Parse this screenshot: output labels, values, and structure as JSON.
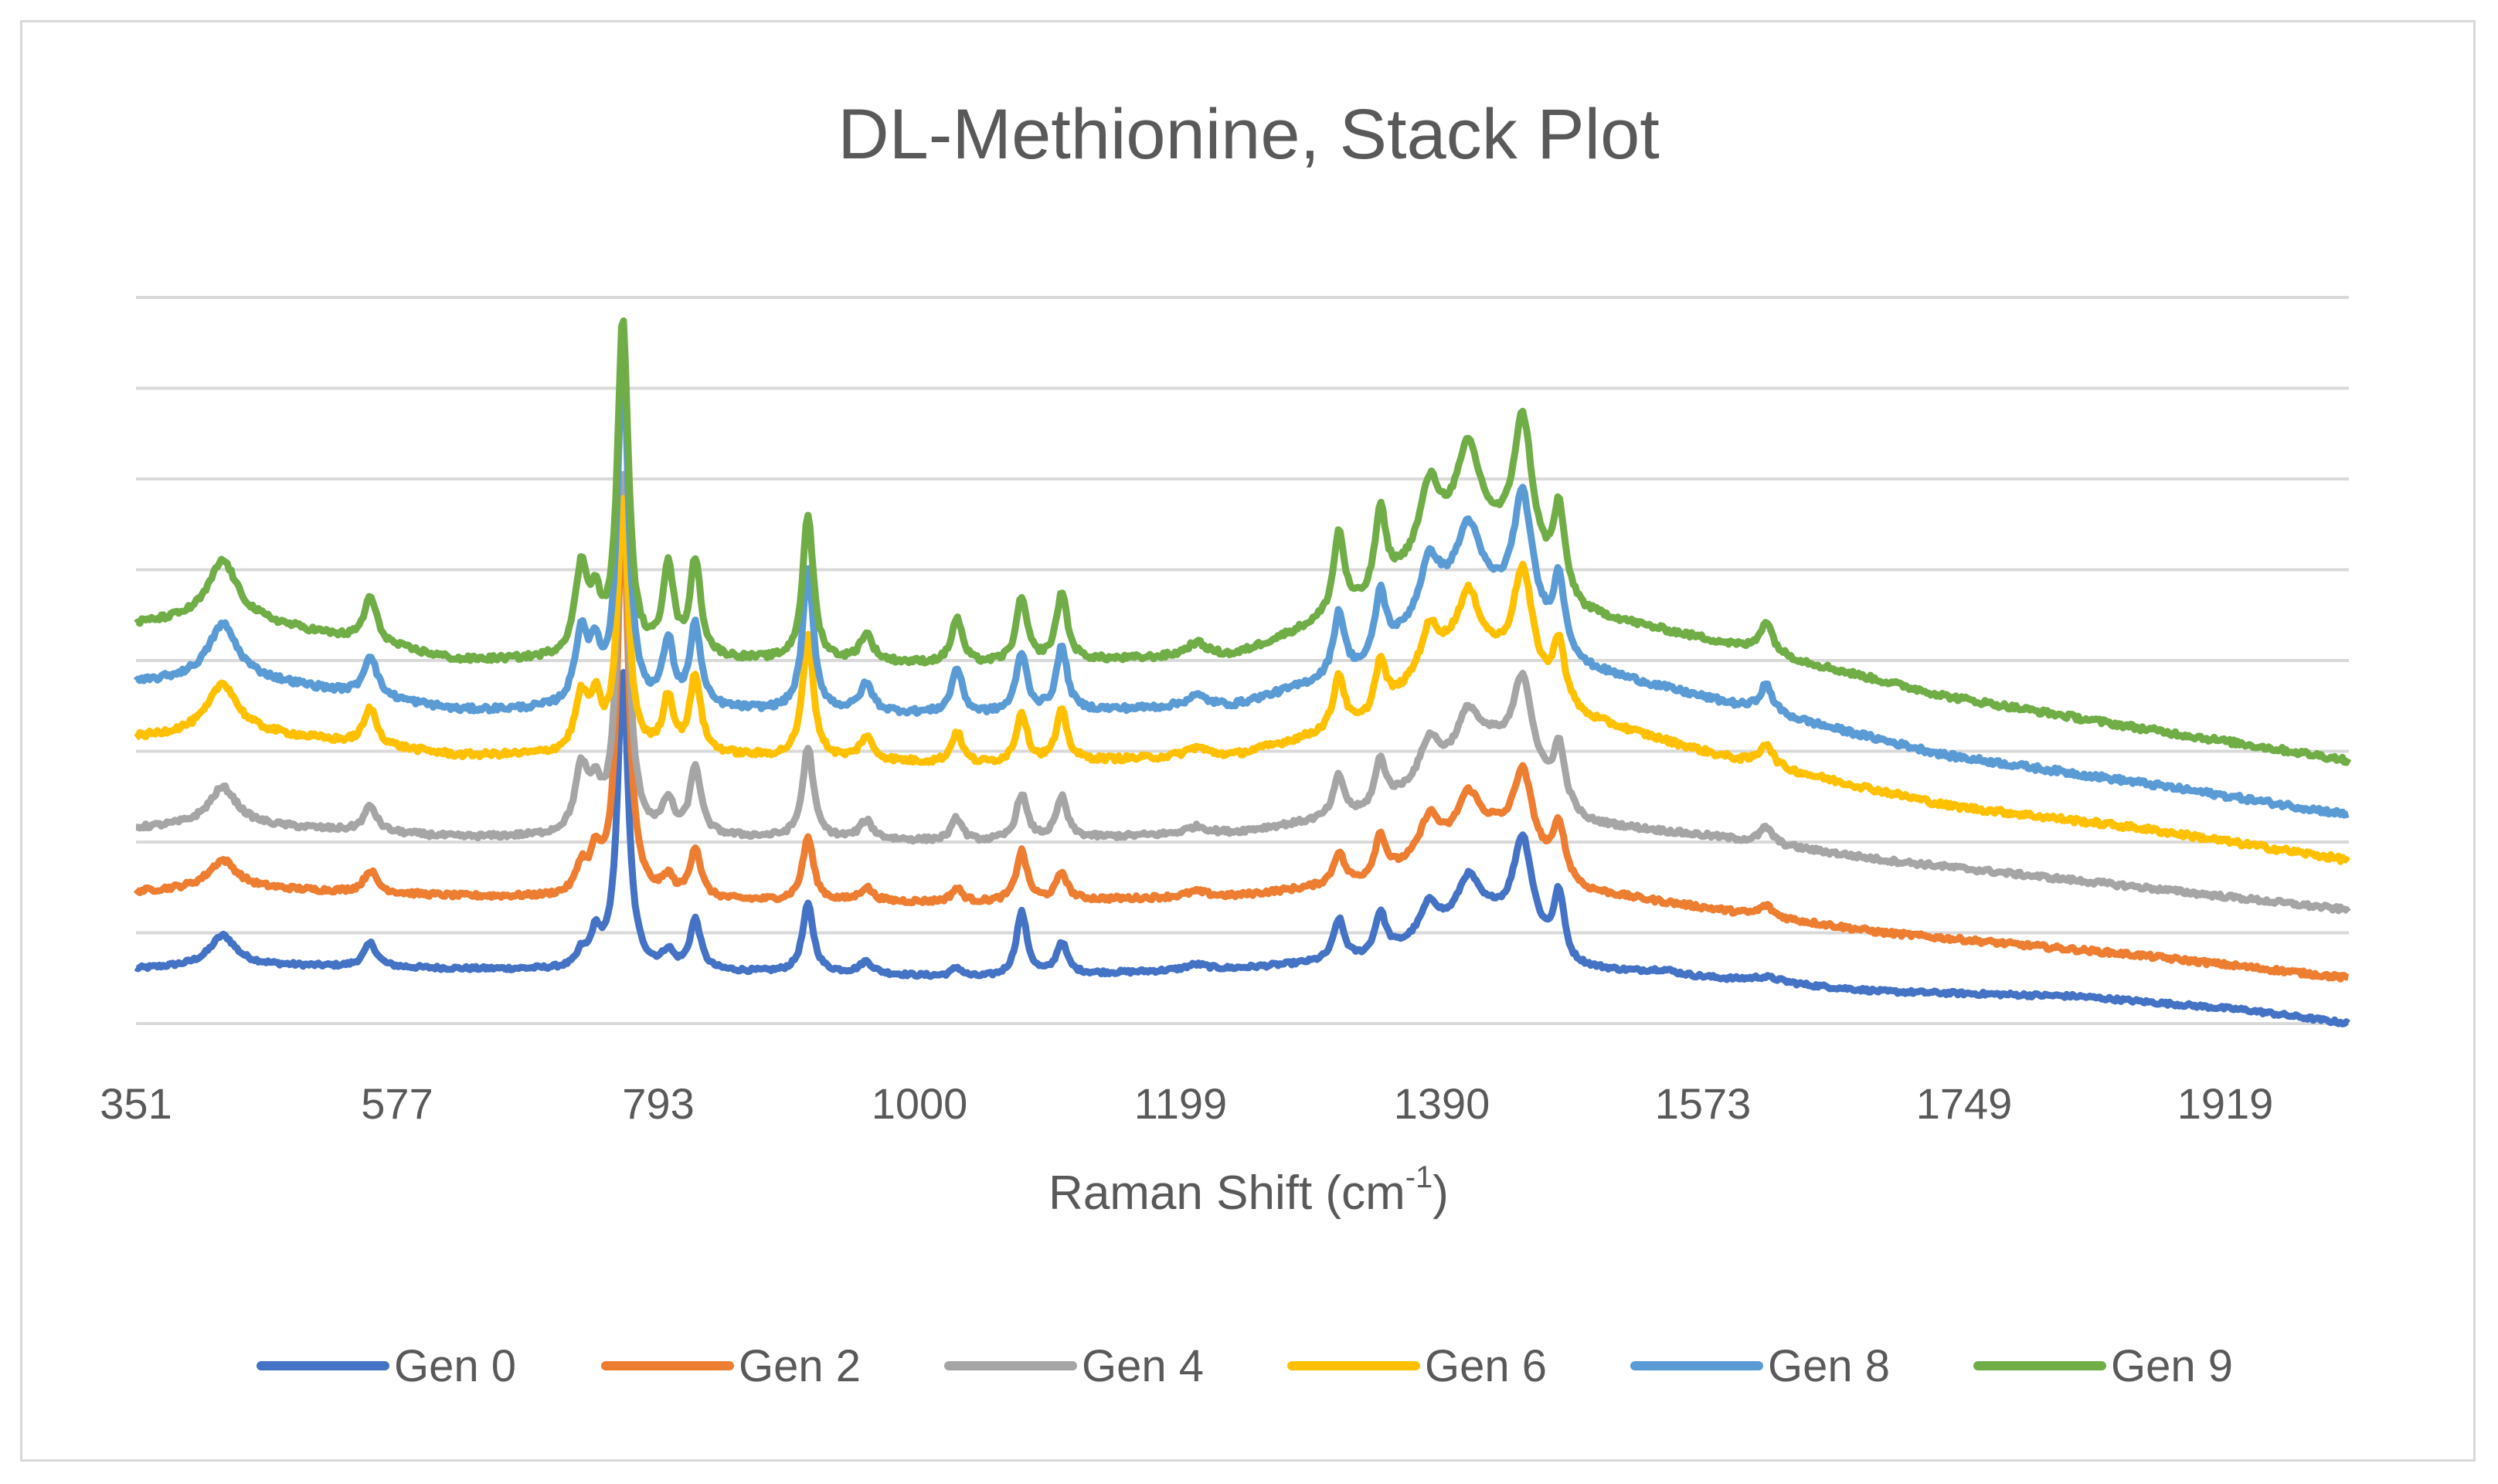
{
  "chart_data": {
    "type": "line",
    "title": "DL-Methionine, Stack Plot",
    "xlabel": "Raman Shift (cm",
    "xlabel_sup": "-1",
    "xlabel_end": ")",
    "ylabel": "",
    "x_ticks": [
      "351",
      "577",
      "793",
      "1000",
      "1199",
      "1390",
      "1573",
      "1749",
      "1919"
    ],
    "xlim": [
      351,
      2060
    ],
    "ylim": [
      0,
      8.4
    ],
    "gridlines": [
      1,
      2,
      3,
      4,
      5,
      6,
      7,
      8
    ],
    "grid": true,
    "legend_position": "bottom",
    "series": [
      {
        "name": "Gen 0",
        "color": "#4472C4",
        "offset": 0.6,
        "baseline": [
          [
            351,
            0.0
          ],
          [
            420,
            0.05
          ],
          [
            600,
            0.0
          ],
          [
            900,
            -0.05
          ],
          [
            1000,
            -0.1
          ],
          [
            1200,
            0.0
          ],
          [
            1300,
            0.1
          ],
          [
            1400,
            0.5
          ],
          [
            1460,
            0.0
          ],
          [
            1560,
            -0.1
          ],
          [
            1700,
            -0.25
          ],
          [
            1850,
            -0.3
          ],
          [
            1980,
            -0.45
          ],
          [
            2060,
            -0.6
          ]
        ],
        "peaks": [
          [
            418,
            0.32,
            12
          ],
          [
            532,
            0.26,
            6
          ],
          [
            695,
            0.15,
            4
          ],
          [
            706,
            0.35,
            5
          ],
          [
            727,
            3.3,
            5
          ],
          [
            762,
            0.18,
            5
          ],
          [
            783,
            0.55,
            5
          ],
          [
            870,
            0.75,
            5
          ],
          [
            915,
            0.13,
            6
          ],
          [
            985,
            0.1,
            5
          ],
          [
            1035,
            0.7,
            5
          ],
          [
            1066,
            0.35,
            5
          ],
          [
            1170,
            0.06,
            10
          ],
          [
            1280,
            0.45,
            5
          ],
          [
            1312,
            0.45,
            5
          ],
          [
            1350,
            0.38,
            9
          ],
          [
            1380,
            0.55,
            11
          ],
          [
            1422,
            1.1,
            9
          ],
          [
            1450,
            0.7,
            5
          ],
          [
            1530,
            0.05,
            15
          ],
          [
            1610,
            0.06,
            15
          ]
        ],
        "noise": 0.02
      },
      {
        "name": "Gen 2",
        "color": "#ED7D31",
        "offset": 1.45,
        "baseline": [
          [
            351,
            0.0
          ],
          [
            420,
            0.05
          ],
          [
            600,
            -0.05
          ],
          [
            800,
            -0.1
          ],
          [
            1000,
            -0.12
          ],
          [
            1200,
            -0.05
          ],
          [
            1300,
            0.1
          ],
          [
            1400,
            0.6
          ],
          [
            1470,
            0.0
          ],
          [
            1573,
            -0.2
          ],
          [
            1700,
            -0.45
          ],
          [
            1900,
            -0.7
          ],
          [
            2060,
            -0.95
          ]
        ],
        "peaks": [
          [
            418,
            0.3,
            13
          ],
          [
            532,
            0.24,
            6
          ],
          [
            695,
            0.3,
            5
          ],
          [
            706,
            0.4,
            5
          ],
          [
            727,
            4.4,
            5
          ],
          [
            762,
            0.2,
            5
          ],
          [
            783,
            0.55,
            5
          ],
          [
            870,
            0.7,
            5
          ],
          [
            915,
            0.15,
            6
          ],
          [
            985,
            0.15,
            5
          ],
          [
            1035,
            0.55,
            5
          ],
          [
            1066,
            0.3,
            5
          ],
          [
            1170,
            0.06,
            10
          ],
          [
            1280,
            0.35,
            5
          ],
          [
            1312,
            0.45,
            5
          ],
          [
            1350,
            0.45,
            9
          ],
          [
            1380,
            0.55,
            11
          ],
          [
            1422,
            0.9,
            9
          ],
          [
            1450,
            0.55,
            5
          ],
          [
            1610,
            0.12,
            6
          ]
        ],
        "noise": 0.025
      },
      {
        "name": "Gen 4",
        "color": "#A5A5A5",
        "offset": 2.1,
        "baseline": [
          [
            351,
            0.05
          ],
          [
            420,
            0.1
          ],
          [
            600,
            -0.05
          ],
          [
            800,
            -0.05
          ],
          [
            1000,
            -0.1
          ],
          [
            1200,
            0.0
          ],
          [
            1300,
            0.2
          ],
          [
            1400,
            0.9
          ],
          [
            1470,
            0.1
          ],
          [
            1573,
            -0.05
          ],
          [
            1700,
            -0.3
          ],
          [
            1900,
            -0.6
          ],
          [
            2060,
            -0.85
          ]
        ],
        "peaks": [
          [
            418,
            0.4,
            13
          ],
          [
            532,
            0.28,
            6
          ],
          [
            695,
            0.7,
            6
          ],
          [
            706,
            0.4,
            5
          ],
          [
            727,
            4.0,
            5
          ],
          [
            762,
            0.35,
            5
          ],
          [
            783,
            0.75,
            5
          ],
          [
            870,
            1.0,
            5
          ],
          [
            915,
            0.2,
            6
          ],
          [
            985,
            0.25,
            5
          ],
          [
            1035,
            0.5,
            5
          ],
          [
            1066,
            0.45,
            5
          ],
          [
            1170,
            0.08,
            10
          ],
          [
            1280,
            0.45,
            5
          ],
          [
            1312,
            0.5,
            5
          ],
          [
            1350,
            0.45,
            9
          ],
          [
            1380,
            0.55,
            11
          ],
          [
            1422,
            1.05,
            9
          ],
          [
            1450,
            0.6,
            5
          ],
          [
            1610,
            0.18,
            6
          ]
        ],
        "noise": 0.025
      },
      {
        "name": "Gen 6",
        "color": "#FFC000",
        "offset": 2.95,
        "baseline": [
          [
            351,
            0.2
          ],
          [
            420,
            0.3
          ],
          [
            600,
            0.0
          ],
          [
            800,
            0.0
          ],
          [
            1000,
            -0.1
          ],
          [
            1200,
            0.0
          ],
          [
            1300,
            0.35
          ],
          [
            1380,
            1.2
          ],
          [
            1470,
            0.4
          ],
          [
            1573,
            0.0
          ],
          [
            1750,
            -0.55
          ],
          [
            1900,
            -0.8
          ],
          [
            2060,
            -1.15
          ]
        ],
        "peaks": [
          [
            418,
            0.5,
            13
          ],
          [
            532,
            0.4,
            6
          ],
          [
            695,
            0.6,
            6
          ],
          [
            706,
            0.5,
            5
          ],
          [
            727,
            2.8,
            5
          ],
          [
            762,
            0.6,
            5
          ],
          [
            783,
            0.85,
            5
          ],
          [
            870,
            1.35,
            5
          ],
          [
            915,
            0.25,
            6
          ],
          [
            985,
            0.35,
            5
          ],
          [
            1035,
            0.55,
            5
          ],
          [
            1066,
            0.55,
            5
          ],
          [
            1170,
            0.1,
            10
          ],
          [
            1280,
            0.6,
            5
          ],
          [
            1312,
            0.55,
            5
          ],
          [
            1350,
            0.5,
            9
          ],
          [
            1380,
            0.55,
            11
          ],
          [
            1422,
            1.2,
            9
          ],
          [
            1450,
            0.65,
            5
          ],
          [
            1610,
            0.25,
            6
          ]
        ],
        "noise": 0.03
      },
      {
        "name": "Gen 8",
        "color": "#5B9BD5",
        "offset": 3.45,
        "baseline": [
          [
            351,
            0.3
          ],
          [
            420,
            0.4
          ],
          [
            600,
            0.0
          ],
          [
            800,
            0.0
          ],
          [
            1000,
            -0.05
          ],
          [
            1200,
            0.05
          ],
          [
            1300,
            0.45
          ],
          [
            1380,
            1.4
          ],
          [
            1470,
            0.45
          ],
          [
            1573,
            0.1
          ],
          [
            1750,
            -0.5
          ],
          [
            1900,
            -0.8
          ],
          [
            2060,
            -1.15
          ]
        ],
        "peaks": [
          [
            418,
            0.55,
            13
          ],
          [
            532,
            0.45,
            6
          ],
          [
            695,
            0.8,
            6
          ],
          [
            706,
            0.5,
            5
          ],
          [
            727,
            3.9,
            5
          ],
          [
            762,
            0.7,
            5
          ],
          [
            783,
            0.9,
            5
          ],
          [
            870,
            1.55,
            5
          ],
          [
            915,
            0.3,
            6
          ],
          [
            985,
            0.5,
            5
          ],
          [
            1035,
            0.65,
            5
          ],
          [
            1066,
            0.7,
            5
          ],
          [
            1170,
            0.12,
            10
          ],
          [
            1280,
            0.7,
            5
          ],
          [
            1312,
            0.7,
            5
          ],
          [
            1350,
            0.6,
            9
          ],
          [
            1380,
            0.6,
            11
          ],
          [
            1422,
            1.4,
            9
          ],
          [
            1450,
            0.75,
            5
          ],
          [
            1610,
            0.3,
            6
          ]
        ],
        "noise": 0.03
      },
      {
        "name": "Gen 9",
        "color": "#70AD47",
        "offset": 4.0,
        "baseline": [
          [
            351,
            0.4
          ],
          [
            420,
            0.5
          ],
          [
            600,
            0.0
          ],
          [
            800,
            0.0
          ],
          [
            1000,
            -0.05
          ],
          [
            1200,
            0.05
          ],
          [
            1300,
            0.6
          ],
          [
            1380,
            1.5
          ],
          [
            1470,
            0.5
          ],
          [
            1573,
            0.2
          ],
          [
            1750,
            -0.4
          ],
          [
            1900,
            -0.75
          ],
          [
            2060,
            -1.1
          ]
        ],
        "peaks": [
          [
            418,
            0.6,
            13
          ],
          [
            532,
            0.5,
            6
          ],
          [
            695,
            0.95,
            6
          ],
          [
            706,
            0.5,
            5
          ],
          [
            727,
            3.7,
            5
          ],
          [
            762,
            1.0,
            5
          ],
          [
            783,
            1.05,
            5
          ],
          [
            870,
            1.6,
            5
          ],
          [
            915,
            0.3,
            6
          ],
          [
            985,
            0.5,
            5
          ],
          [
            1035,
            0.7,
            5
          ],
          [
            1066,
            0.75,
            5
          ],
          [
            1170,
            0.15,
            10
          ],
          [
            1280,
            0.9,
            5
          ],
          [
            1312,
            0.9,
            5
          ],
          [
            1350,
            0.75,
            9
          ],
          [
            1380,
            0.8,
            11
          ],
          [
            1422,
            1.6,
            9
          ],
          [
            1450,
            0.9,
            5
          ],
          [
            1610,
            0.35,
            6
          ]
        ],
        "noise": 0.03
      }
    ]
  }
}
